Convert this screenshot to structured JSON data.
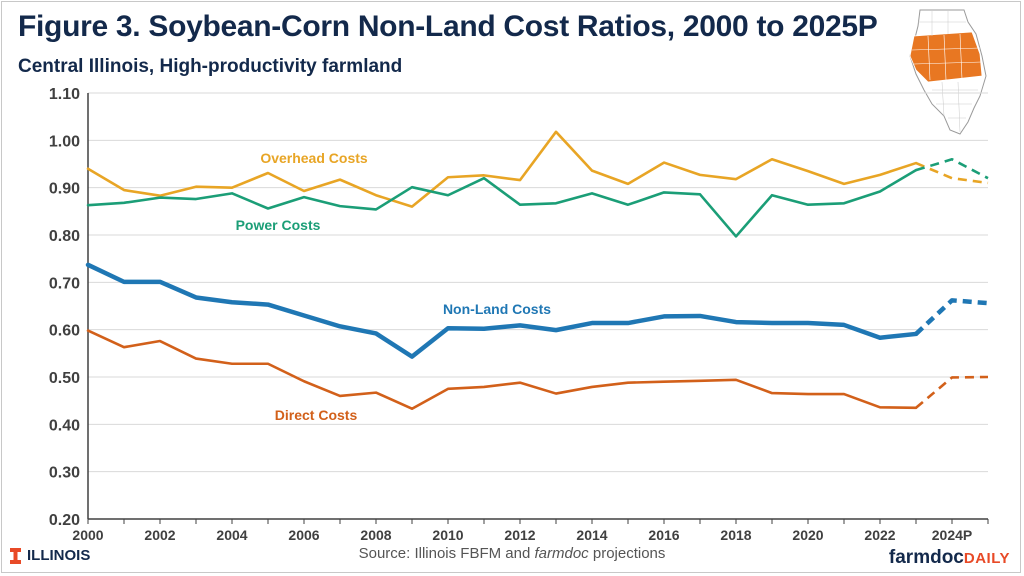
{
  "figure": {
    "title": "Figure 3. Soybean-Corn Non-Land Cost Ratios, 2000 to 2025P",
    "subtitle": "Central Illinois, High-productivity farmland"
  },
  "footer": {
    "brand_left": "ILLINOIS",
    "source_prefix": "Source: Illinois FBFM and ",
    "source_em": "farmdoc",
    "source_suffix": " projections",
    "brand_right_main": "farmdoc",
    "brand_right_accent": "DAILY"
  },
  "colors": {
    "title": "#13294b",
    "overhead": "#e8a525",
    "power": "#1b9e77",
    "nonland": "#1f77b4",
    "direct": "#d2601a",
    "map_fill": "#e87722"
  },
  "chart_data": {
    "type": "line",
    "ylim": [
      0.2,
      1.1
    ],
    "yticks": [
      "0.20",
      "0.30",
      "0.40",
      "0.50",
      "0.60",
      "0.70",
      "0.80",
      "0.90",
      "1.00",
      "1.10"
    ],
    "xlim": [
      2000,
      2025
    ],
    "xticks": [
      {
        "x": 2000,
        "label": "2000"
      },
      {
        "x": 2002,
        "label": "2002"
      },
      {
        "x": 2004,
        "label": "2004"
      },
      {
        "x": 2006,
        "label": "2006"
      },
      {
        "x": 2008,
        "label": "2008"
      },
      {
        "x": 2010,
        "label": "2010"
      },
      {
        "x": 2012,
        "label": "2012"
      },
      {
        "x": 2014,
        "label": "2014"
      },
      {
        "x": 2016,
        "label": "2016"
      },
      {
        "x": 2018,
        "label": "2018"
      },
      {
        "x": 2020,
        "label": "2020"
      },
      {
        "x": 2022,
        "label": "2022"
      },
      {
        "x": 2024,
        "label": "2024P"
      }
    ],
    "series": [
      {
        "name": "Overhead Costs",
        "color": "#e8a525",
        "x": [
          2000,
          2001,
          2002,
          2003,
          2004,
          2005,
          2006,
          2007,
          2008,
          2009,
          2010,
          2011,
          2012,
          2013,
          2014,
          2015,
          2016,
          2017,
          2018,
          2019,
          2020,
          2021,
          2022,
          2023
        ],
        "values": [
          0.94,
          0.895,
          0.883,
          0.902,
          0.9,
          0.931,
          0.893,
          0.917,
          0.884,
          0.86,
          0.922,
          0.926,
          0.916,
          1.018,
          0.936,
          0.908,
          0.953,
          0.927,
          0.918,
          0.96,
          0.935,
          0.908,
          0.927,
          0.952
        ],
        "projected_x": [
          2023,
          2024,
          2025
        ],
        "projected_values": [
          0.952,
          0.92,
          0.91
        ]
      },
      {
        "name": "Power Costs",
        "color": "#1b9e77",
        "x": [
          2000,
          2001,
          2002,
          2003,
          2004,
          2005,
          2006,
          2007,
          2008,
          2009,
          2010,
          2011,
          2012,
          2013,
          2014,
          2015,
          2016,
          2017,
          2018,
          2019,
          2020,
          2021,
          2022,
          2023
        ],
        "values": [
          0.863,
          0.868,
          0.879,
          0.876,
          0.888,
          0.856,
          0.88,
          0.861,
          0.854,
          0.901,
          0.884,
          0.92,
          0.864,
          0.867,
          0.888,
          0.864,
          0.89,
          0.886,
          0.797,
          0.884,
          0.864,
          0.867,
          0.892,
          0.937
        ],
        "projected_x": [
          2023,
          2024,
          2025
        ],
        "projected_values": [
          0.937,
          0.96,
          0.92
        ]
      },
      {
        "name": "Non-Land  Costs",
        "color": "#1f77b4",
        "x": [
          2000,
          2001,
          2002,
          2003,
          2004,
          2005,
          2006,
          2007,
          2008,
          2009,
          2010,
          2011,
          2012,
          2013,
          2014,
          2015,
          2016,
          2017,
          2018,
          2019,
          2020,
          2021,
          2022,
          2023
        ],
        "values": [
          0.737,
          0.701,
          0.701,
          0.668,
          0.658,
          0.653,
          0.63,
          0.607,
          0.592,
          0.543,
          0.603,
          0.602,
          0.609,
          0.599,
          0.614,
          0.614,
          0.628,
          0.629,
          0.616,
          0.614,
          0.614,
          0.61,
          0.583,
          0.591
        ],
        "projected_x": [
          2023,
          2024,
          2025
        ],
        "projected_values": [
          0.591,
          0.662,
          0.656
        ]
      },
      {
        "name": "Direct Costs",
        "color": "#d2601a",
        "x": [
          2000,
          2001,
          2002,
          2003,
          2004,
          2005,
          2006,
          2007,
          2008,
          2009,
          2010,
          2011,
          2012,
          2013,
          2014,
          2015,
          2016,
          2017,
          2018,
          2019,
          2020,
          2021,
          2022,
          2023
        ],
        "values": [
          0.598,
          0.563,
          0.576,
          0.539,
          0.528,
          0.528,
          0.491,
          0.46,
          0.467,
          0.433,
          0.475,
          0.479,
          0.488,
          0.465,
          0.479,
          0.488,
          0.49,
          0.492,
          0.494,
          0.466,
          0.464,
          0.464,
          0.436,
          0.435
        ],
        "projected_x": [
          2023,
          2024,
          2025
        ],
        "projected_values": [
          0.435,
          0.499,
          0.5
        ]
      }
    ]
  }
}
